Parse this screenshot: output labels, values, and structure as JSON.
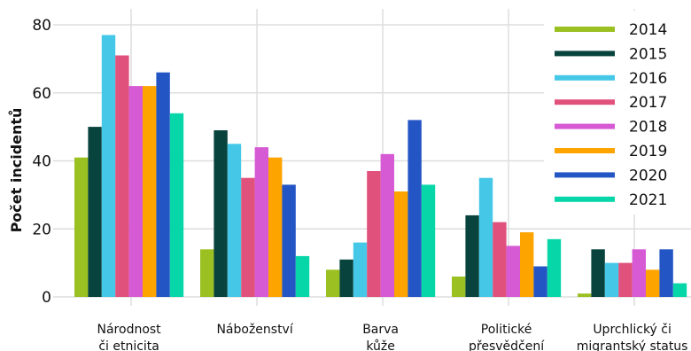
{
  "chart_data": {
    "type": "bar",
    "ylabel": "Počet incidentů",
    "ylim": [
      0,
      80
    ],
    "yticks": [
      0,
      20,
      40,
      60,
      80
    ],
    "grid": true,
    "legend_position": "top-right",
    "categories": [
      [
        "Národnost",
        "či etnicita"
      ],
      [
        "Náboženství"
      ],
      [
        "Barva",
        "kůže"
      ],
      [
        "Politické",
        "přesvědčení"
      ],
      [
        "Uprchlický či",
        "migrantský status"
      ]
    ],
    "series": [
      {
        "name": "2014",
        "color": "#9bc021",
        "values": [
          41,
          14,
          8,
          6,
          1
        ]
      },
      {
        "name": "2015",
        "color": "#08433d",
        "values": [
          50,
          49,
          11,
          24,
          14
        ]
      },
      {
        "name": "2016",
        "color": "#45c8e7",
        "values": [
          77,
          45,
          16,
          35,
          10
        ]
      },
      {
        "name": "2017",
        "color": "#e0517c",
        "values": [
          71,
          35,
          37,
          22,
          10
        ]
      },
      {
        "name": "2018",
        "color": "#d65ad4",
        "values": [
          62,
          44,
          42,
          15,
          14
        ]
      },
      {
        "name": "2019",
        "color": "#fea400",
        "values": [
          62,
          41,
          31,
          19,
          8
        ]
      },
      {
        "name": "2020",
        "color": "#2455c4",
        "values": [
          66,
          33,
          52,
          9,
          14
        ]
      },
      {
        "name": "2021",
        "color": "#07d7a8",
        "values": [
          54,
          12,
          33,
          17,
          4
        ]
      }
    ]
  }
}
